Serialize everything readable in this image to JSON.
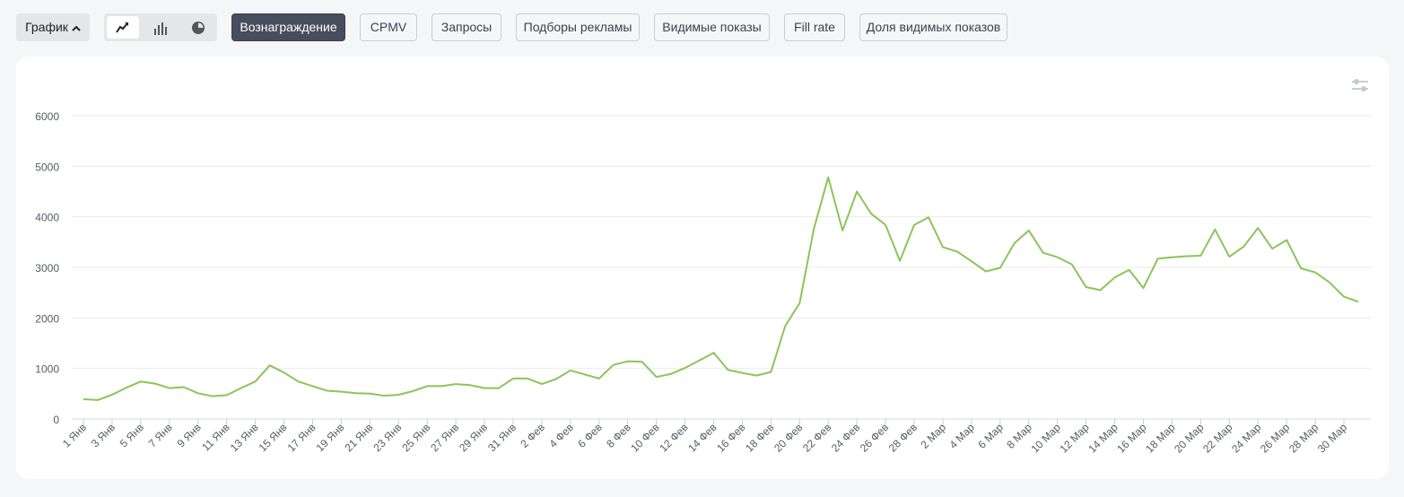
{
  "toolbar": {
    "graph_menu_label": "График",
    "chart_type_options": [
      {
        "icon": "line-chart-icon",
        "active": true
      },
      {
        "icon": "bar-chart-icon",
        "active": false
      },
      {
        "icon": "pie-chart-icon",
        "active": false
      }
    ],
    "metrics": [
      {
        "label": "Вознаграждение",
        "active": true
      },
      {
        "label": "CPMV",
        "active": false
      },
      {
        "label": "Запросы",
        "active": false
      },
      {
        "label": "Подборы рекламы",
        "active": false
      },
      {
        "label": "Видимые показы",
        "active": false
      },
      {
        "label": "Fill rate",
        "active": false
      },
      {
        "label": "Доля видимых показов",
        "active": false
      }
    ]
  },
  "card": {
    "settings_icon": "sliders-icon"
  },
  "chart_data": {
    "type": "line",
    "title": "",
    "xlabel": "",
    "ylabel": "",
    "ylim": [
      0,
      6000
    ],
    "yticks": [
      0,
      1000,
      2000,
      3000,
      4000,
      5000,
      6000
    ],
    "grid": true,
    "line_color": "#8cc45a",
    "x_tick_labels": [
      "1 Янв",
      "3 Янв",
      "5 Янв",
      "7 Янв",
      "9 Янв",
      "11 Янв",
      "13 Янв",
      "15 Янв",
      "17 Янв",
      "19 Янв",
      "21 Янв",
      "23 Янв",
      "25 Янв",
      "27 Янв",
      "29 Янв",
      "31 Янв",
      "2 Фев",
      "4 Фев",
      "6 Фев",
      "8 Фев",
      "10 Фев",
      "12 Фев",
      "14 Фев",
      "16 Фев",
      "18 Фев",
      "20 Фев",
      "22 Фев",
      "24 Фев",
      "26 Фев",
      "28 Фев",
      "2 Мар",
      "4 Мар",
      "6 Мар",
      "8 Мар",
      "10 Мар",
      "12 Мар",
      "14 Мар",
      "16 Мар",
      "18 Мар",
      "20 Мар",
      "22 Мар",
      "24 Мар",
      "26 Мар",
      "28 Мар",
      "30 Мар"
    ],
    "series": [
      {
        "values": [
          390,
          375,
          480,
          620,
          740,
          700,
          610,
          630,
          510,
          450,
          470,
          610,
          740,
          1060,
          920,
          740,
          650,
          560,
          540,
          510,
          500,
          460,
          480,
          550,
          650,
          650,
          690,
          670,
          610,
          610,
          800,
          800,
          690,
          790,
          960,
          880,
          800,
          1070,
          1140,
          1130,
          830,
          890,
          1010,
          1160,
          1310,
          970,
          910,
          860,
          930,
          1840,
          2290,
          3770,
          4780,
          3730,
          4500,
          4060,
          3840,
          3130,
          3840,
          3990,
          3400,
          3310,
          3120,
          2920,
          2990,
          3480,
          3730,
          3290,
          3200,
          3060,
          2610,
          2550,
          2800,
          2950,
          2590,
          3170,
          3200,
          3220,
          3230,
          3750,
          3210,
          3410,
          3780,
          3370,
          3540,
          2980,
          2900,
          2700,
          2420,
          2320
        ]
      }
    ]
  }
}
